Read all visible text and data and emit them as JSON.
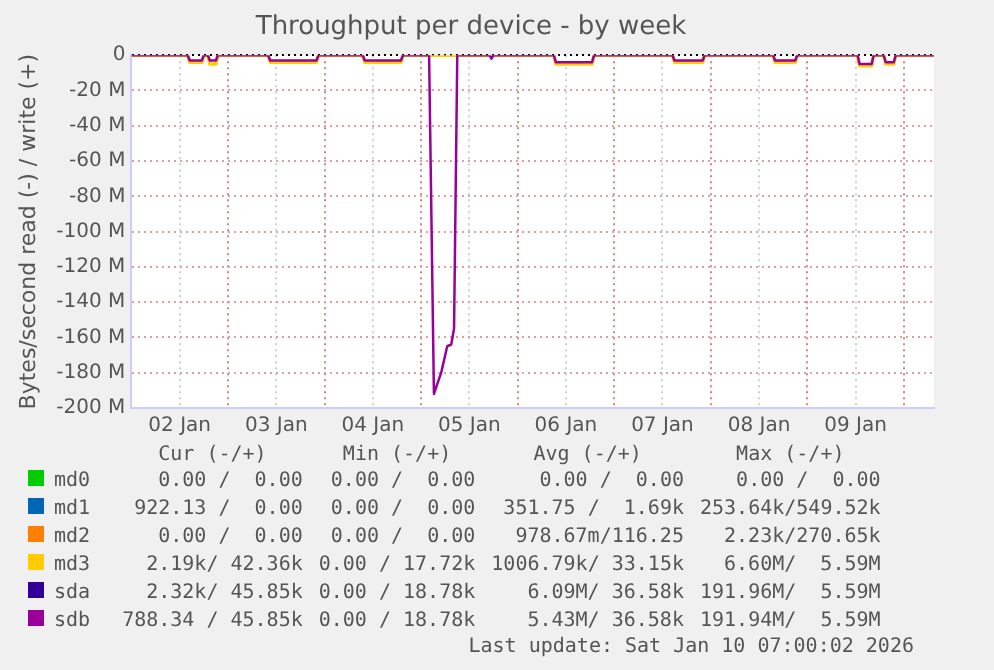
{
  "chart_data": {
    "type": "line",
    "title": "Throughput per device - by week",
    "ylabel": "Bytes/second read (-) / write (+)",
    "x": [
      "2026-01-02T00:00",
      "2026-01-02T14:00",
      "2026-01-02T14:30",
      "2026-01-02T17:30",
      "2026-01-02T18:00",
      "2026-01-02T19:00",
      "2026-01-02T19:30",
      "2026-01-02T21:00",
      "2026-01-02T21:30",
      "2026-01-03T10:00",
      "2026-01-03T10:30",
      "2026-01-03T22:00",
      "2026-01-03T22:30",
      "2026-01-04T09:30",
      "2026-01-04T10:00",
      "2026-01-04T19:00",
      "2026-01-04T19:30",
      "2026-01-05T02:00",
      "2026-01-05T03:12",
      "2026-01-05T05:00",
      "2026-01-05T06:30",
      "2026-01-05T07:30",
      "2026-01-05T08:12",
      "2026-01-05T09:00",
      "2026-01-05T17:00",
      "2026-01-05T17:30",
      "2026-01-05T18:00",
      "2026-01-06T09:00",
      "2026-01-06T09:30",
      "2026-01-06T18:30",
      "2026-01-06T19:00",
      "2026-01-07T14:30",
      "2026-01-07T15:00",
      "2026-01-07T22:00",
      "2026-01-07T22:30",
      "2026-01-08T15:30",
      "2026-01-08T16:00",
      "2026-01-08T21:00",
      "2026-01-08T21:30",
      "2026-01-09T12:30",
      "2026-01-09T13:00",
      "2026-01-09T16:00",
      "2026-01-09T16:30",
      "2026-01-09T19:00",
      "2026-01-09T19:30",
      "2026-01-09T21:30",
      "2026-01-09T22:00",
      "2026-01-10T07:30"
    ],
    "series": [
      {
        "name": "md0",
        "color": "#00cc00",
        "values": [
          null,
          null,
          null,
          null,
          null,
          null,
          null,
          null,
          null,
          null,
          null,
          null,
          null,
          null,
          null,
          null,
          null,
          null,
          null,
          null,
          null,
          null,
          null,
          null,
          null,
          null,
          null,
          null,
          null,
          null,
          null,
          null,
          null,
          null,
          null,
          null,
          null,
          null,
          null,
          null,
          null,
          null,
          null,
          null,
          null,
          null,
          null,
          null
        ]
      },
      {
        "name": "md1",
        "color": "#0066b3",
        "values": [
          null,
          null,
          null,
          null,
          null,
          null,
          null,
          null,
          null,
          null,
          null,
          null,
          null,
          null,
          null,
          null,
          null,
          null,
          null,
          null,
          null,
          null,
          null,
          null,
          null,
          null,
          null,
          null,
          null,
          null,
          null,
          null,
          null,
          null,
          null,
          null,
          null,
          null,
          null,
          null,
          null,
          null,
          null,
          null,
          null,
          null,
          null,
          null
        ]
      },
      {
        "name": "md2",
        "color": "#ff8000",
        "values": [
          null,
          null,
          null,
          null,
          null,
          null,
          null,
          null,
          null,
          null,
          null,
          null,
          null,
          null,
          null,
          null,
          null,
          null,
          null,
          null,
          null,
          null,
          null,
          null,
          null,
          null,
          null,
          null,
          null,
          null,
          null,
          null,
          null,
          null,
          null,
          null,
          null,
          null,
          null,
          null,
          null,
          null,
          null,
          null,
          null,
          null,
          null,
          null
        ]
      },
      {
        "name": "md3",
        "color": "#ffcc00",
        "values": [
          0,
          0,
          -4,
          -4,
          0,
          0,
          -5,
          -5,
          0,
          0,
          -4,
          -4,
          0,
          0,
          -4,
          -4,
          0,
          0,
          0,
          0,
          0,
          0,
          0,
          0,
          0,
          0,
          0,
          0,
          -5,
          -5,
          0,
          0,
          -4,
          -4,
          0,
          0,
          -4,
          -4,
          0,
          0,
          -6,
          -6,
          0,
          0,
          -5,
          -5,
          0,
          0
        ]
      },
      {
        "name": "sda",
        "color": "#330099",
        "values": [
          null,
          null,
          null,
          null,
          null,
          null,
          null,
          null,
          null,
          null,
          null,
          null,
          null,
          null,
          null,
          null,
          null,
          null,
          null,
          null,
          null,
          null,
          null,
          null,
          null,
          null,
          null,
          null,
          null,
          null,
          null,
          null,
          null,
          null,
          null,
          null,
          null,
          null,
          null,
          null,
          null,
          null,
          null,
          null,
          null,
          null,
          null,
          null
        ]
      },
      {
        "name": "sdb",
        "color": "#990099",
        "values": [
          0,
          0,
          -3,
          -3,
          0,
          0,
          -3,
          -3,
          0,
          0,
          -3,
          -3,
          0,
          0,
          -3,
          -3,
          0,
          0,
          -192,
          -180,
          -165,
          -164,
          -155,
          0,
          0,
          -2,
          0,
          0,
          -4,
          -4,
          0,
          0,
          -3,
          -3,
          0,
          0,
          -3,
          -3,
          0,
          0,
          -5,
          -5,
          0,
          0,
          -4,
          -4,
          0,
          0
        ]
      }
    ],
    "xlim": [
      "2026-01-02T00:00",
      "2026-01-10T07:30"
    ],
    "xticks": [
      {
        "value": "2026-01-02T12:00",
        "label": "02 Jan"
      },
      {
        "value": "2026-01-03T00:00",
        "label": null
      },
      {
        "value": "2026-01-03T12:00",
        "label": "03 Jan"
      },
      {
        "value": "2026-01-04T00:00",
        "label": null
      },
      {
        "value": "2026-01-04T12:00",
        "label": "04 Jan"
      },
      {
        "value": "2026-01-05T00:00",
        "label": null
      },
      {
        "value": "2026-01-05T12:00",
        "label": "05 Jan"
      },
      {
        "value": "2026-01-06T00:00",
        "label": null
      },
      {
        "value": "2026-01-06T12:00",
        "label": "06 Jan"
      },
      {
        "value": "2026-01-07T00:00",
        "label": null
      },
      {
        "value": "2026-01-07T12:00",
        "label": "07 Jan"
      },
      {
        "value": "2026-01-08T00:00",
        "label": null
      },
      {
        "value": "2026-01-08T12:00",
        "label": "08 Jan"
      },
      {
        "value": "2026-01-09T00:00",
        "label": null
      },
      {
        "value": "2026-01-09T12:00",
        "label": "09 Jan"
      },
      {
        "value": "2026-01-10T00:00",
        "label": null
      }
    ],
    "ylim": [
      -200,
      0
    ],
    "yticks": [
      {
        "value": -200,
        "label": "-200 M"
      },
      {
        "value": -180,
        "label": "-180 M"
      },
      {
        "value": -160,
        "label": "-160 M"
      },
      {
        "value": -140,
        "label": "-140 M"
      },
      {
        "value": -120,
        "label": "-120 M"
      },
      {
        "value": -100,
        "label": "-100 M"
      },
      {
        "value": -80,
        "label": "-80 M"
      },
      {
        "value": -60,
        "label": "-60 M"
      },
      {
        "value": -40,
        "label": "-40 M"
      },
      {
        "value": -20,
        "label": "-20 M"
      },
      0
    ],
    "grid": true,
    "legend": "bottom",
    "annotations": [
      "Cur (-/+)",
      "Min (-/+)",
      "Avg (-/+)",
      "Max (-/+)",
      "0.00 /  0.00",
      "0.00 /  0.00",
      "0.00 /  0.00",
      "0.00 /  0.00",
      "922.13 /  0.00",
      "0.00 /  0.00",
      "351.75 /  1.69k",
      "253.64k/549.52k",
      "0.00 /  0.00",
      "0.00 /  0.00",
      "978.67m/116.25",
      "2.23k/270.65k",
      "2.19k/ 42.36k",
      "0.00 / 17.72k",
      "1006.79k/ 33.15k",
      "6.60M/  5.59M",
      "2.32k/ 45.85k",
      "0.00 / 18.78k",
      "6.09M/ 36.58k",
      "191.96M/  5.59M",
      "788.34 / 45.85k",
      "0.00 / 18.78k",
      "5.43M/ 36.58k",
      "191.94M/  5.59M",
      "Last update: Sat Jan 10 07:00:02 2026"
    ]
  }
}
